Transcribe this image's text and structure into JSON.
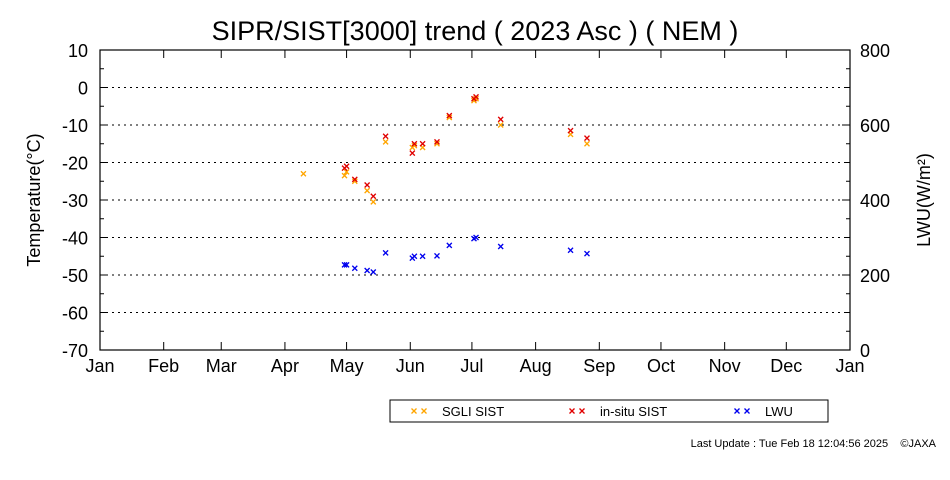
{
  "chart_data": {
    "type": "scatter",
    "title": "SIPR/SIST[3000] trend ( 2023 Asc ) ( NEM )",
    "ylabel_left": "Temperature(°C)",
    "ylabel_right": "LWU(W/m²)",
    "ylim_left": [
      -70,
      10
    ],
    "ylim_right": [
      0,
      800
    ],
    "yticks_left": [
      "10",
      "0",
      "-10",
      "-20",
      "-30",
      "-40",
      "-50",
      "-60",
      "-70"
    ],
    "yticks_right": [
      "800",
      "600",
      "400",
      "200",
      "0"
    ],
    "xlim": [
      1,
      366
    ],
    "x_unit": "day of year 2023",
    "month_labels": [
      "Jan",
      "Feb",
      "Mar",
      "Apr",
      "May",
      "Jun",
      "Jul",
      "Aug",
      "Sep",
      "Oct",
      "Nov",
      "Dec",
      "Jan"
    ],
    "month_starts": [
      1,
      32,
      60,
      91,
      121,
      152,
      182,
      213,
      244,
      274,
      305,
      335,
      366
    ],
    "grid": "horizontal dotted at every 10 °C",
    "legend_placement": "bottom-center",
    "series": [
      {
        "name": "SGLI SIST",
        "axis": "left",
        "color": "#ffa500",
        "marker": "x",
        "points": [
          [
            100,
            -23.0
          ],
          [
            120,
            -23.5
          ],
          [
            121,
            -22.5
          ],
          [
            125,
            -25.0
          ],
          [
            131,
            -27.5
          ],
          [
            134,
            -30.5
          ],
          [
            140,
            -14.5
          ],
          [
            153,
            -16.0
          ],
          [
            154,
            -15.5
          ],
          [
            158,
            -16.0
          ],
          [
            165,
            -15.0
          ],
          [
            171,
            -8.0
          ],
          [
            183,
            -3.5
          ],
          [
            184,
            -3.0
          ],
          [
            196,
            -10.0
          ],
          [
            230,
            -12.5
          ],
          [
            238,
            -15.0
          ]
        ]
      },
      {
        "name": "in-situ SIST",
        "axis": "left",
        "color": "#e00000",
        "marker": "x",
        "points": [
          [
            120,
            -21.5
          ],
          [
            121,
            -21.0
          ],
          [
            125,
            -24.5
          ],
          [
            131,
            -26.0
          ],
          [
            134,
            -29.0
          ],
          [
            140,
            -13.0
          ],
          [
            153,
            -17.5
          ],
          [
            154,
            -15.0
          ],
          [
            158,
            -15.0
          ],
          [
            165,
            -14.5
          ],
          [
            171,
            -7.5
          ],
          [
            183,
            -3.0
          ],
          [
            184,
            -2.5
          ],
          [
            196,
            -8.5
          ],
          [
            230,
            -11.5
          ],
          [
            238,
            -13.5
          ]
        ]
      },
      {
        "name": "LWU",
        "axis": "right",
        "color": "#0000ee",
        "marker": "x",
        "points": [
          [
            120,
            227
          ],
          [
            121,
            227
          ],
          [
            125,
            218
          ],
          [
            131,
            212
          ],
          [
            134,
            208
          ],
          [
            140,
            259
          ],
          [
            153,
            245
          ],
          [
            154,
            250
          ],
          [
            158,
            250
          ],
          [
            165,
            251
          ],
          [
            171,
            279
          ],
          [
            183,
            297
          ],
          [
            184,
            300
          ],
          [
            196,
            276
          ],
          [
            230,
            266
          ],
          [
            238,
            257
          ]
        ]
      }
    ]
  },
  "footer": {
    "text": "Last Update : Tue Feb 18 12:04:56 2025",
    "copyright": "©JAXA"
  }
}
